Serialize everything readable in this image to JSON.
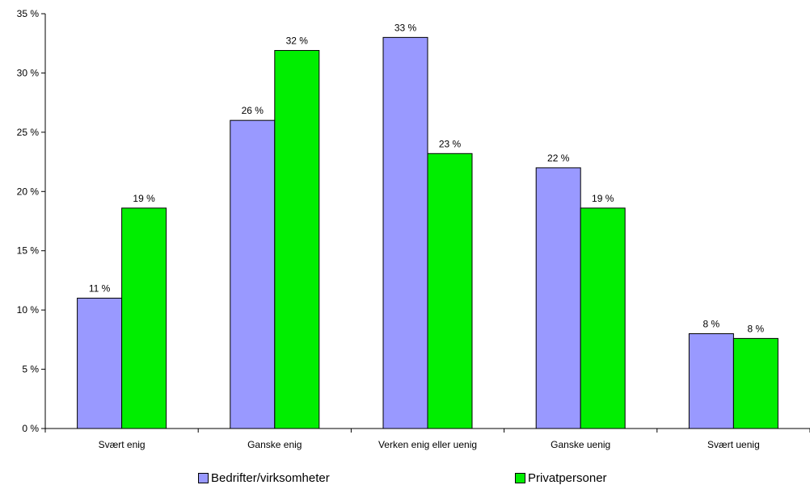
{
  "chart_data": {
    "type": "bar",
    "categories": [
      "Svært enig",
      "Ganske enig",
      "Verken enig eller uenig",
      "Ganske uenig",
      "Svært uenig"
    ],
    "series": [
      {
        "name": "Bedrifter/virksomheter",
        "values": [
          11,
          26,
          33,
          22,
          8
        ],
        "labels": [
          "11 %",
          "26 %",
          "33 %",
          "22 %",
          "8 %"
        ],
        "color": "#9999ff"
      },
      {
        "name": "Privatpersoner",
        "values": [
          18.6,
          31.9,
          23.2,
          18.6,
          7.6
        ],
        "labels": [
          "19 %",
          "32 %",
          "23 %",
          "19 %",
          "8 %"
        ],
        "color": "#00ee00"
      }
    ],
    "ylim": [
      0,
      35
    ],
    "yticks": [
      0,
      5,
      10,
      15,
      20,
      25,
      30,
      35
    ],
    "ytick_labels": [
      "0 %",
      "5 %",
      "10 %",
      "15 %",
      "20 %",
      "25 %",
      "30 %",
      "35 %"
    ],
    "title": "",
    "xlabel": "",
    "ylabel": "",
    "grid": false,
    "legend_position": "bottom"
  }
}
